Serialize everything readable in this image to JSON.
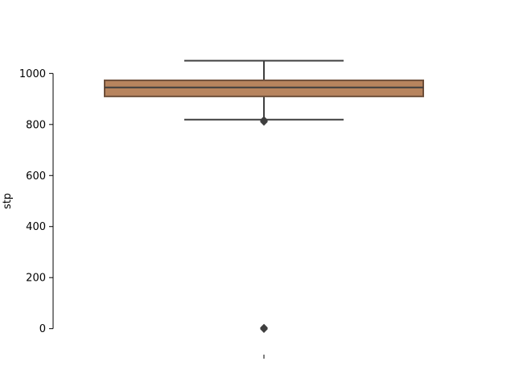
{
  "chart_data": {
    "type": "box",
    "ylabel": "stp",
    "xlabel": "",
    "ylim": [
      -105,
      1105
    ],
    "yticks": [
      0,
      200,
      400,
      600,
      800,
      1000
    ],
    "grid": false,
    "box": {
      "q1": 910,
      "median": 945,
      "q3": 973,
      "whisker_low": 819,
      "whisker_high": 1050,
      "outliers": [
        818,
        816,
        814,
        812,
        810,
        4,
        2,
        0,
        -1,
        -2
      ]
    },
    "colors": {
      "box_fill": "#b7845e",
      "box_edge": "#6e4f3a",
      "line": "#3f3f3f",
      "axis": "#000000"
    }
  }
}
